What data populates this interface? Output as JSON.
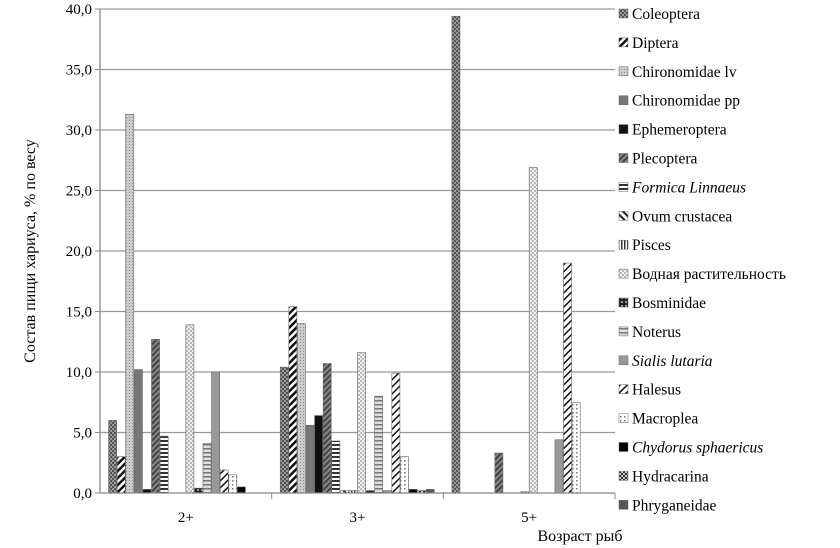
{
  "chart_data": {
    "type": "bar",
    "title": "",
    "xlabel": "Возраст рыб",
    "ylabel": "Состав пищи хариуса, % по весу",
    "ylim": [
      0,
      40
    ],
    "yticks": [
      "0,0",
      "5,0",
      "10,0",
      "15,0",
      "20,0",
      "25,0",
      "30,0",
      "35,0",
      "40,0"
    ],
    "grid": true,
    "legend_position": "right",
    "categories": [
      "2+",
      "3+",
      "5+"
    ],
    "series": [
      {
        "name": "Coleoptera",
        "italic": false,
        "values": [
          6.0,
          10.4,
          39.4
        ]
      },
      {
        "name": "Diptera",
        "italic": false,
        "values": [
          3.0,
          15.4,
          0
        ]
      },
      {
        "name": "Chironomidae lv",
        "italic": false,
        "values": [
          31.3,
          14.0,
          0
        ]
      },
      {
        "name": "Chironomidae pp",
        "italic": false,
        "values": [
          10.2,
          5.6,
          0
        ]
      },
      {
        "name": "Ephemeroptera",
        "italic": false,
        "values": [
          0.3,
          6.4,
          0
        ]
      },
      {
        "name": "Plecoptera",
        "italic": false,
        "values": [
          12.7,
          10.7,
          3.3
        ]
      },
      {
        "name": "Formica Linnaeus",
        "italic": true,
        "values": [
          4.7,
          4.3,
          0
        ]
      },
      {
        "name": "Ovum crustacea",
        "italic": false,
        "values": [
          0,
          0.2,
          0
        ]
      },
      {
        "name": "Pisces",
        "italic": false,
        "values": [
          0,
          0.2,
          0.1
        ]
      },
      {
        "name": "Водная растительность",
        "italic": false,
        "values": [
          13.9,
          11.6,
          26.9
        ]
      },
      {
        "name": "Bosminidae",
        "italic": false,
        "values": [
          0.4,
          0.2,
          0
        ]
      },
      {
        "name": "Noterus",
        "italic": false,
        "values": [
          4.1,
          8.0,
          0
        ]
      },
      {
        "name": "Sialis lutaria",
        "italic": true,
        "values": [
          10.0,
          0.2,
          4.4
        ]
      },
      {
        "name": "Halesus",
        "italic": false,
        "values": [
          1.9,
          9.9,
          19.0
        ]
      },
      {
        "name": "Macroplea",
        "italic": false,
        "values": [
          1.5,
          3.0,
          7.5
        ]
      },
      {
        "name": "Chydorus sphaericus",
        "italic": true,
        "values": [
          0.5,
          0.3,
          0
        ]
      },
      {
        "name": "Hydracarina",
        "italic": false,
        "values": [
          0,
          0.2,
          0
        ]
      },
      {
        "name": "Phryganeidae",
        "italic": false,
        "values": [
          0,
          0.3,
          0
        ]
      }
    ]
  }
}
